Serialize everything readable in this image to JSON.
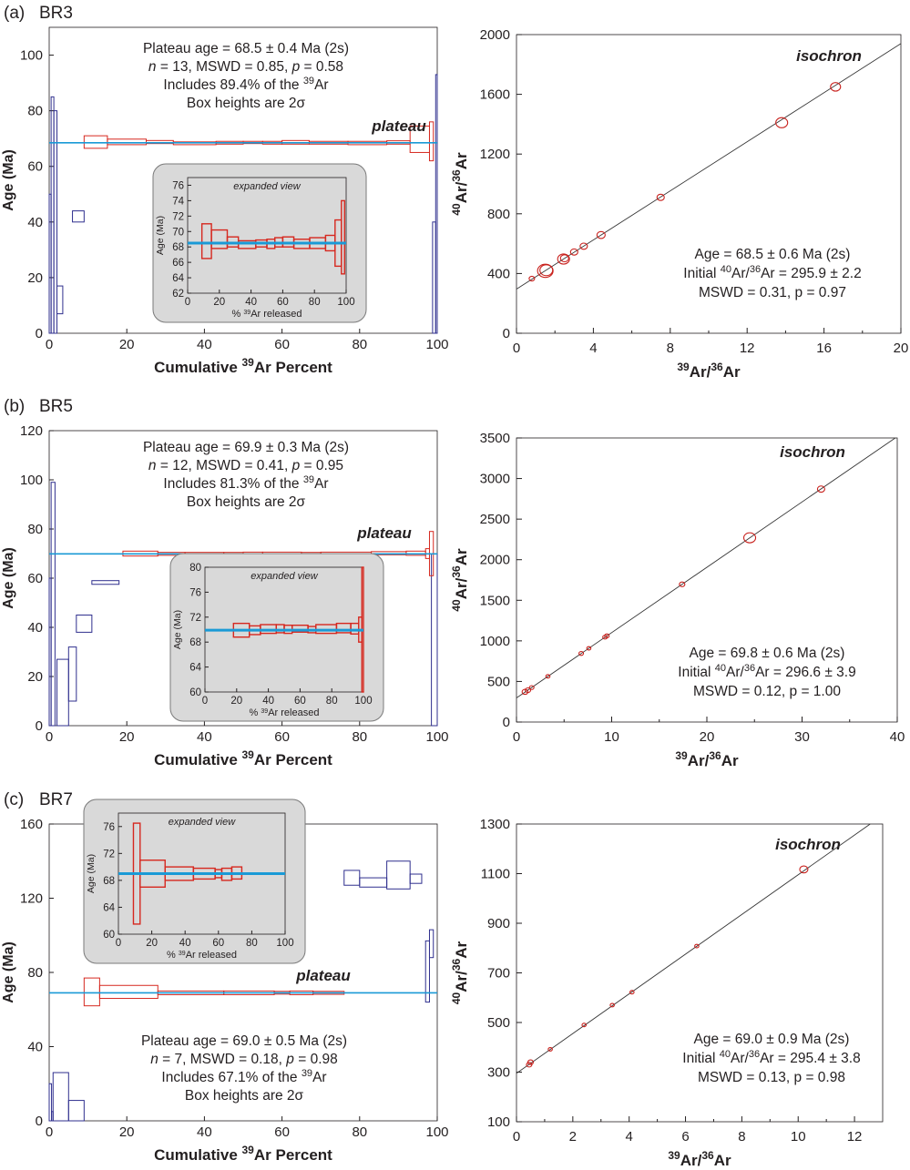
{
  "figure": {
    "panels": [
      {
        "label": "(a)",
        "sample": "BR3",
        "spectrum": {
          "ylabel": "Age (Ma)",
          "xlabel_pre": "Cumulative ",
          "xlabel_sup": "39",
          "xlabel_post": "Ar Percent",
          "xlim": [
            0,
            100
          ],
          "ylim": [
            0,
            110
          ],
          "xticks": [
            0,
            20,
            40,
            60,
            80,
            100
          ],
          "yticks": [
            0,
            20,
            40,
            60,
            80,
            100
          ],
          "plateau_age": 68.5,
          "plateau_label": "plateau",
          "info": [
            "Plateau age = 68.5 ± 0.4 Ma (2s)",
            "n = 13, MSWD = 0.85, p = 0.58",
            "Includes 89.4% of the 39Ar",
            "Box heights are 2σ"
          ],
          "plateau_steps": [
            [
              9,
              15,
              66.5,
              71
            ],
            [
              15,
              25,
              67.8,
              69.8
            ],
            [
              25,
              32,
              68.2,
              69.3
            ],
            [
              32,
              43,
              67.8,
              68.8
            ],
            [
              43,
              50,
              68,
              69
            ],
            [
              50,
              55,
              68.2,
              69
            ],
            [
              55,
              60,
              68,
              69
            ],
            [
              60,
              67,
              68,
              69.3
            ],
            [
              67,
              77,
              68,
              69
            ],
            [
              77,
              87,
              67.8,
              69
            ],
            [
              87,
              93,
              68,
              69.2
            ],
            [
              93,
              98,
              65,
              74.5
            ],
            [
              98,
              99,
              62,
              76
            ]
          ],
          "excluded_steps": [
            [
              0,
              0.5,
              0,
              50
            ],
            [
              0.5,
              1.2,
              0,
              85
            ],
            [
              1.2,
              2,
              0,
              80
            ],
            [
              2,
              3.5,
              7,
              17
            ],
            [
              6,
              9,
              40,
              44
            ],
            [
              98.8,
              99.6,
              0,
              40
            ],
            [
              99.6,
              100,
              0,
              93
            ]
          ],
          "inset": {
            "title": "expanded view",
            "ylabel": "Age (Ma)",
            "xlabel": "% 39Ar released",
            "xlim": [
              0,
              100
            ],
            "ylim": [
              62,
              77
            ],
            "xticks": [
              0,
              20,
              40,
              60,
              80,
              100
            ],
            "yticks": [
              62,
              64,
              66,
              68,
              70,
              72,
              74,
              76
            ],
            "plateau_age": 68.5,
            "steps": [
              [
                9,
                15,
                66.5,
                71
              ],
              [
                15,
                25,
                67.8,
                70.2
              ],
              [
                25,
                32,
                68,
                69.3
              ],
              [
                32,
                43,
                67.8,
                68.8
              ],
              [
                43,
                50,
                68,
                68.9
              ],
              [
                50,
                55,
                67.8,
                69
              ],
              [
                55,
                60,
                68,
                69.2
              ],
              [
                60,
                67,
                68,
                69.3
              ],
              [
                67,
                77,
                67.8,
                69
              ],
              [
                77,
                87,
                67.8,
                69.2
              ],
              [
                87,
                93,
                67.5,
                69.5
              ],
              [
                93,
                97,
                65.5,
                71.5
              ],
              [
                97,
                99,
                64.5,
                74
              ]
            ]
          }
        },
        "isochron": {
          "xlabel": "39Ar/36Ar",
          "ylabel": "40Ar/36Ar",
          "xlim": [
            0,
            20
          ],
          "ylim": [
            0,
            2000
          ],
          "xticks": [
            0,
            4,
            8,
            12,
            16,
            20
          ],
          "yticks": [
            0,
            400,
            800,
            1200,
            1600,
            2000
          ],
          "intercept": 295.9,
          "slope": 82.2,
          "label": "isochron",
          "info": [
            "Age = 68.5 ± 0.6 Ma (2s)",
            "Initial 40Ar/36Ar = 295.9 ± 2.2",
            "MSWD = 0.31, p = 0.97"
          ],
          "points": [
            [
              1.5,
              418,
              1.4
            ],
            [
              1.55,
              422,
              1.1
            ],
            [
              2.45,
              497,
              1.0
            ],
            [
              2.5,
              502,
              0.6
            ],
            [
              3.0,
              544,
              0.5
            ],
            [
              3.5,
              583,
              0.5
            ],
            [
              4.4,
              658,
              0.6
            ],
            [
              7.5,
              910,
              0.5
            ],
            [
              13.8,
              1410,
              1.0
            ],
            [
              16.6,
              1650,
              0.8
            ],
            [
              0.8,
              366,
              0.3
            ]
          ]
        }
      },
      {
        "label": "(b)",
        "sample": "BR5",
        "spectrum": {
          "ylabel": "Age (Ma)",
          "xlabel_pre": "Cumulative ",
          "xlabel_sup": "39",
          "xlabel_post": "Ar Percent",
          "xlim": [
            0,
            100
          ],
          "ylim": [
            0,
            120
          ],
          "xticks": [
            0,
            20,
            40,
            60,
            80,
            100
          ],
          "yticks": [
            0,
            20,
            40,
            60,
            80,
            100,
            120
          ],
          "plateau_age": 69.9,
          "plateau_label": "plateau",
          "info": [
            "Plateau age = 69.9 ± 0.3 Ma (2s)",
            "n = 12, MSWD = 0.41, p = 0.95",
            "Includes 81.3% of the 39Ar",
            "Box heights are 2σ"
          ],
          "plateau_steps": [
            [
              19,
              28,
              69,
              71
            ],
            [
              28,
              35,
              69.3,
              70.5
            ],
            [
              35,
              45,
              69.5,
              70.5
            ],
            [
              45,
              50,
              69.5,
              70.5
            ],
            [
              50,
              55,
              69.6,
              70.6
            ],
            [
              55,
              65,
              69.5,
              70.6
            ],
            [
              65,
              70,
              69.6,
              70.5
            ],
            [
              70,
              83,
              69.5,
              70.6
            ],
            [
              83,
              92,
              69.5,
              70.8
            ],
            [
              92,
              97,
              69.3,
              71
            ],
            [
              97,
              98,
              68,
              72
            ],
            [
              98,
              99,
              61,
              79
            ]
          ],
          "excluded_steps": [
            [
              0,
              0.5,
              0,
              60
            ],
            [
              0.5,
              1.5,
              0,
              99
            ],
            [
              2,
              5,
              0,
              27
            ],
            [
              5,
              7,
              10,
              32
            ],
            [
              7,
              11,
              38,
              45
            ],
            [
              11,
              18,
              57.5,
              59
            ],
            [
              98.5,
              100,
              0,
              70
            ]
          ],
          "inset": {
            "title": "expanded view",
            "ylabel": "Age (Ma)",
            "xlabel": "% 39Ar released",
            "xlim": [
              0,
              100
            ],
            "ylim": [
              60,
              80
            ],
            "xticks": [
              0,
              20,
              40,
              60,
              80,
              100
            ],
            "yticks": [
              60,
              64,
              68,
              72,
              76,
              80
            ],
            "plateau_age": 69.9,
            "steps": [
              [
                18,
                28,
                68.8,
                71
              ],
              [
                28,
                35,
                69.2,
                70.6
              ],
              [
                35,
                45,
                69.4,
                70.8
              ],
              [
                45,
                50,
                69.5,
                70.8
              ],
              [
                50,
                55,
                69.4,
                70.7
              ],
              [
                55,
                65,
                69.6,
                70.7
              ],
              [
                65,
                70,
                69.5,
                70.5
              ],
              [
                70,
                83,
                69.4,
                70.8
              ],
              [
                83,
                92,
                69.5,
                71
              ],
              [
                92,
                97,
                69.3,
                71
              ],
              [
                97,
                99,
                68,
                72
              ],
              [
                99,
                100,
                60,
                80
              ]
            ]
          }
        },
        "isochron": {
          "xlabel": "39Ar/36Ar",
          "ylabel": "40Ar/36Ar",
          "xlim": [
            0,
            40
          ],
          "ylim": [
            0,
            3500
          ],
          "xticks": [
            0,
            10,
            20,
            30,
            40
          ],
          "yticks": [
            0,
            500,
            1000,
            1500,
            2000,
            2500,
            3000,
            3500
          ],
          "intercept": 296.6,
          "slope": 80.5,
          "label": "isochron",
          "info": [
            "Age = 69.8 ± 0.6 Ma (2s)",
            "Initial 40Ar/36Ar = 296.6 ± 3.9",
            "MSWD = 0.12, p = 1.00"
          ],
          "points": [
            [
              0.9,
              372,
              0.35
            ],
            [
              1.2,
              392,
              0.3
            ],
            [
              1.6,
              425,
              0.2
            ],
            [
              3.3,
              563,
              0.15
            ],
            [
              6.8,
              845,
              0.2
            ],
            [
              7.6,
              908,
              0.15
            ],
            [
              9.3,
              1046,
              0.2
            ],
            [
              9.5,
              1062,
              0.2
            ],
            [
              17.4,
              1697,
              0.3
            ],
            [
              24.5,
              2270,
              1.0
            ],
            [
              32.0,
              2870,
              0.5
            ]
          ]
        }
      },
      {
        "label": "(c)",
        "sample": "BR7",
        "spectrum": {
          "ylabel": "Age (Ma)",
          "xlabel_pre": "Cumulative ",
          "xlabel_sup": "39",
          "xlabel_post": "Ar Percent",
          "xlim": [
            0,
            100
          ],
          "ylim": [
            0,
            160
          ],
          "xticks": [
            0,
            20,
            40,
            60,
            80,
            100
          ],
          "yticks": [
            0,
            40,
            80,
            120,
            160
          ],
          "plateau_age": 69.0,
          "plateau_label": "plateau",
          "info": [
            "Plateau age = 69.0 ± 0.5 Ma (2s)",
            "n = 7, MSWD = 0.18, p = 0.98",
            "Includes 67.1% of the 39Ar",
            "Box heights are 2σ"
          ],
          "plateau_steps": [
            [
              9,
              13,
              62,
              77
            ],
            [
              13,
              28,
              66,
              73
            ],
            [
              28,
              45,
              68,
              70
            ],
            [
              45,
              58,
              68,
              70
            ],
            [
              58,
              62,
              68.3,
              69.8
            ],
            [
              62,
              68,
              68,
              70
            ],
            [
              68,
              76,
              68.2,
              69.8
            ]
          ],
          "excluded_steps": [
            [
              0,
              0.6,
              0,
              20
            ],
            [
              0.6,
              1,
              0,
              5
            ],
            [
              1,
              5,
              0,
              26
            ],
            [
              5,
              9,
              0,
              11
            ],
            [
              76,
              80,
              127,
              135
            ],
            [
              80,
              87,
              126,
              131
            ],
            [
              87,
              93,
              125,
              140
            ],
            [
              93,
              96,
              128,
              133
            ],
            [
              97,
              98,
              64,
              97
            ],
            [
              98,
              99,
              88,
              103
            ]
          ],
          "inset": {
            "title": "expanded view",
            "ylabel": "Age (Ma)",
            "xlabel": "% 39Ar released",
            "xlim": [
              0,
              100
            ],
            "ylim": [
              60,
              78
            ],
            "xticks": [
              0,
              20,
              40,
              60,
              80,
              100
            ],
            "yticks": [
              60,
              64,
              68,
              72,
              76
            ],
            "plateau_age": 69.0,
            "steps": [
              [
                9,
                13,
                61.5,
                76.5
              ],
              [
                13,
                28,
                67,
                71
              ],
              [
                28,
                45,
                68,
                70
              ],
              [
                45,
                58,
                68.2,
                69.8
              ],
              [
                58,
                62,
                68.4,
                69.6
              ],
              [
                62,
                68,
                68,
                69.8
              ],
              [
                68,
                74,
                68.2,
                70
              ]
            ]
          }
        },
        "isochron": {
          "xlabel": "39Ar/36Ar",
          "ylabel": "40Ar/36Ar",
          "xlim": [
            0,
            13
          ],
          "ylim": [
            100,
            1300
          ],
          "xticks": [
            0,
            2,
            4,
            6,
            8,
            10,
            12
          ],
          "yticks": [
            100,
            300,
            500,
            700,
            900,
            1100,
            1300
          ],
          "intercept": 295.4,
          "slope": 80.0,
          "label": "isochron",
          "info": [
            "Age = 69.0 ± 0.9 Ma (2s)",
            "Initial 40Ar/36Ar = 295.4 ± 3.8",
            "MSWD = 0.13, p = 0.98"
          ],
          "points": [
            [
              0.45,
              330,
              0.3
            ],
            [
              0.5,
              340,
              0.3
            ],
            [
              1.2,
              392,
              0.15
            ],
            [
              2.4,
              490,
              0.15
            ],
            [
              3.4,
              570,
              0.15
            ],
            [
              4.1,
              622,
              0.15
            ],
            [
              6.4,
              808,
              0.15
            ],
            [
              10.2,
              1117,
              0.6
            ]
          ]
        }
      }
    ],
    "colors": {
      "plateau_step": "#d6281f",
      "excluded_step": "#2f2f8e",
      "plateau_line": "#1a9ad6",
      "inset_bg": "#d9d9d9",
      "point": "#c8201c",
      "iso_line": "#333333",
      "text": "#231f20"
    }
  }
}
